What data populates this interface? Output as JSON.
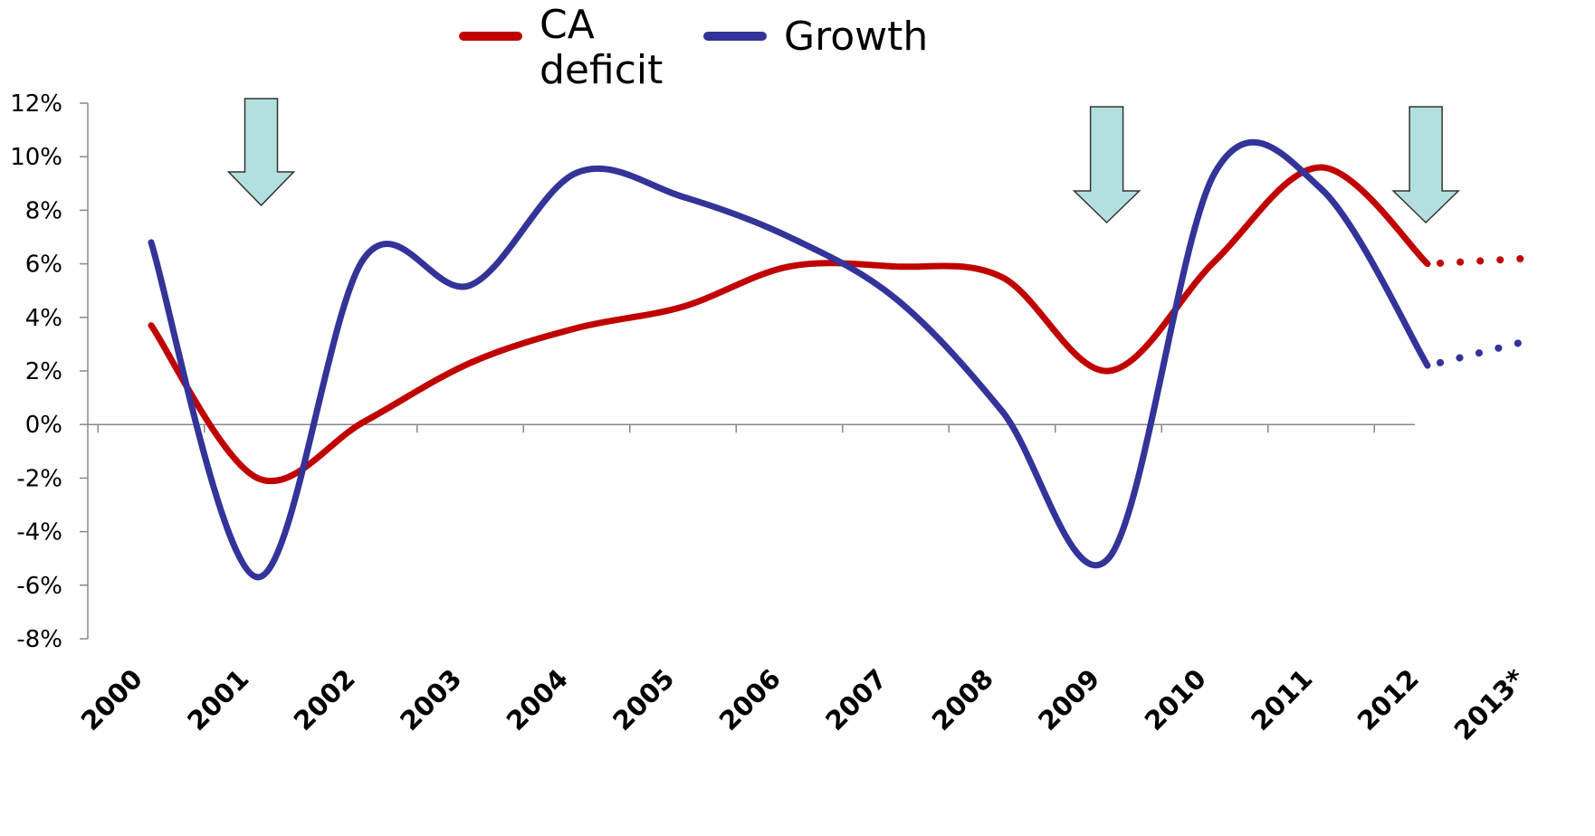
{
  "chart_data": {
    "type": "line",
    "categories": [
      "2000",
      "2001",
      "2002",
      "2003",
      "2004",
      "2005",
      "2006",
      "2007",
      "2008",
      "2009",
      "2010",
      "2011",
      "2012",
      "2013*"
    ],
    "y_ticks": [
      "12%",
      "10%",
      "8%",
      "6%",
      "4%",
      "2%",
      "0%",
      "-2%",
      "-4%",
      "-6%",
      "-8%"
    ],
    "ylim": [
      -8,
      12
    ],
    "grid": false,
    "legend_placement": "top-center",
    "series": [
      {
        "name": "CA deficit",
        "name_lines": [
          "CA",
          "deficit"
        ],
        "color": "#c00000",
        "values": [
          3.7,
          -2.0,
          0.1,
          2.3,
          3.6,
          4.4,
          5.9,
          5.9,
          5.5,
          2.0,
          6.1,
          9.6,
          6.0,
          null
        ],
        "projection": [
          [
            12,
            6.0
          ],
          [
            13,
            6.2
          ]
        ]
      },
      {
        "name": "Growth",
        "name_lines": [
          "Growth"
        ],
        "color": "#333399",
        "values": [
          6.8,
          -5.7,
          6.2,
          5.2,
          9.4,
          8.5,
          7.0,
          4.7,
          0.5,
          -5.0,
          9.4,
          8.8,
          2.2,
          null
        ],
        "projection": [
          [
            12,
            2.2
          ],
          [
            13,
            3.1
          ]
        ]
      }
    ],
    "arrows": {
      "fill": "#b4dfe0",
      "positions": [
        1,
        8.95,
        11.95
      ]
    }
  }
}
